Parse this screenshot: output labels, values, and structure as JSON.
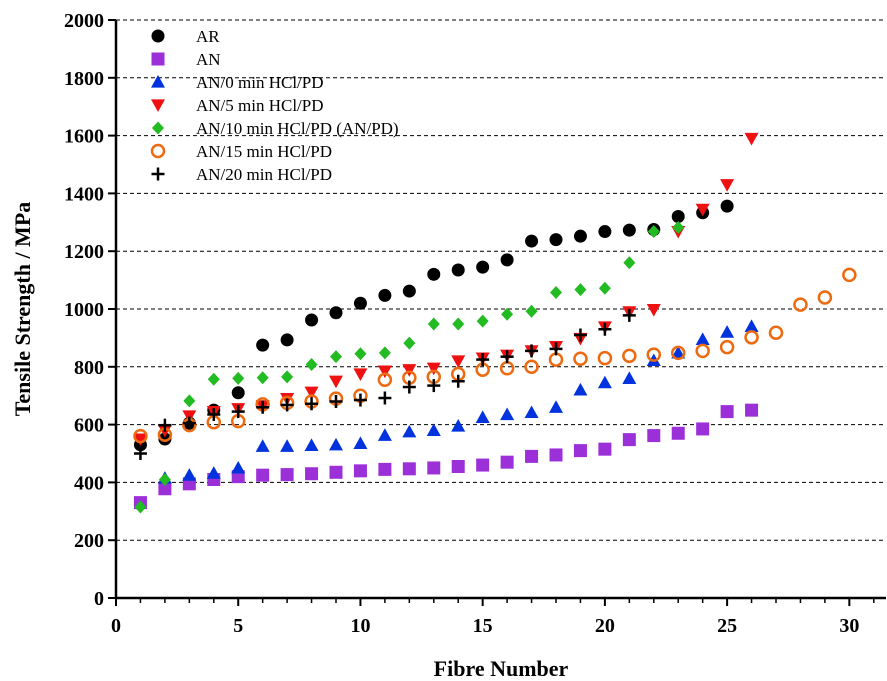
{
  "chart_data": {
    "type": "scatter",
    "xlabel": "Fibre Number",
    "ylabel": "Tensile Strength /  MPa",
    "xlim": [
      0,
      31.5
    ],
    "ylim": [
      0,
      2000
    ],
    "xticks": [
      0,
      5,
      10,
      15,
      20,
      25,
      30
    ],
    "yticks": [
      0,
      200,
      400,
      600,
      800,
      1000,
      1200,
      1400,
      1600,
      1800,
      2000
    ],
    "grid": "horizontal dashed",
    "legend_position": "top-left",
    "series": [
      {
        "name": "AR",
        "marker": "circle",
        "color": "#000000",
        "x": [
          1,
          2,
          3,
          4,
          5,
          6,
          7,
          8,
          9,
          10,
          11,
          12,
          13,
          14,
          15,
          16,
          17,
          18,
          19,
          20,
          21,
          22,
          23,
          24,
          25
        ],
        "y": [
          530,
          550,
          605,
          650,
          710,
          875,
          893,
          962,
          987,
          1020,
          1047,
          1062,
          1120,
          1135,
          1145,
          1170,
          1235,
          1240,
          1252,
          1268,
          1273,
          1275,
          1320,
          1333,
          1356
        ]
      },
      {
        "name": "AN",
        "marker": "square",
        "color": "#9b30d9",
        "x": [
          1,
          2,
          3,
          4,
          5,
          6,
          7,
          8,
          9,
          10,
          11,
          12,
          13,
          14,
          15,
          16,
          17,
          18,
          19,
          20,
          21,
          22,
          23,
          24,
          25,
          26
        ],
        "y": [
          330,
          378,
          395,
          410,
          420,
          425,
          427,
          430,
          435,
          440,
          445,
          447,
          450,
          455,
          460,
          470,
          490,
          495,
          510,
          515,
          548,
          562,
          570,
          585,
          645,
          650
        ]
      },
      {
        "name": "AN/0 min HCl/PD",
        "marker": "triangle-up",
        "color": "#0033dd",
        "x": [
          2,
          3,
          4,
          5,
          6,
          7,
          8,
          9,
          10,
          11,
          12,
          13,
          14,
          15,
          16,
          17,
          18,
          19,
          20,
          21,
          22,
          23,
          24,
          25,
          26
        ],
        "y": [
          415,
          425,
          432,
          450,
          525,
          525,
          528,
          530,
          535,
          563,
          575,
          580,
          595,
          625,
          635,
          642,
          660,
          720,
          745,
          760,
          822,
          848,
          895,
          920,
          940
        ]
      },
      {
        "name": "AN/5 min HCl/PD",
        "marker": "triangle-down",
        "color": "#ee1111",
        "x": [
          1,
          2,
          3,
          4,
          5,
          6,
          7,
          8,
          9,
          10,
          11,
          12,
          13,
          14,
          15,
          16,
          17,
          18,
          19,
          20,
          21,
          22,
          23,
          24,
          25,
          26
        ],
        "y": [
          550,
          580,
          630,
          645,
          655,
          665,
          690,
          712,
          750,
          775,
          785,
          790,
          795,
          820,
          830,
          840,
          855,
          870,
          898,
          938,
          990,
          998,
          1268,
          1345,
          1430,
          1590
        ]
      },
      {
        "name": "AN/10 min HCl/PD (AN/PD)",
        "marker": "diamond",
        "color": "#22bb22",
        "x": [
          1,
          2,
          3,
          4,
          5,
          6,
          7,
          8,
          9,
          10,
          11,
          12,
          13,
          14,
          15,
          16,
          17,
          18,
          19,
          20,
          21,
          22,
          23
        ],
        "y": [
          315,
          410,
          682,
          757,
          760,
          762,
          765,
          808,
          835,
          845,
          848,
          882,
          948,
          948,
          958,
          982,
          992,
          1057,
          1067,
          1072,
          1160,
          1268,
          1282
        ]
      },
      {
        "name": "AN/15 min HCl/PD",
        "marker": "circle-open",
        "color": "#ee6a10",
        "x": [
          1,
          2,
          3,
          4,
          5,
          6,
          7,
          8,
          9,
          10,
          11,
          12,
          13,
          14,
          15,
          16,
          17,
          18,
          19,
          20,
          21,
          22,
          23,
          24,
          25,
          26,
          27,
          28,
          29,
          30
        ],
        "y": [
          560,
          565,
          598,
          608,
          612,
          670,
          675,
          680,
          690,
          700,
          755,
          762,
          765,
          775,
          790,
          795,
          800,
          825,
          828,
          830,
          838,
          842,
          848,
          855,
          868,
          902,
          918,
          1015,
          1040,
          1118
        ]
      },
      {
        "name": "AN/20 min HCl/PD",
        "marker": "plus",
        "color": "#000000",
        "x": [
          1,
          2,
          3,
          4,
          5,
          6,
          7,
          8,
          9,
          10,
          11,
          12,
          13,
          14,
          15,
          16,
          17,
          18,
          19,
          20,
          21
        ],
        "y": [
          500,
          598,
          605,
          635,
          645,
          660,
          668,
          672,
          680,
          685,
          692,
          730,
          735,
          750,
          825,
          835,
          855,
          862,
          910,
          930,
          978
        ]
      }
    ]
  }
}
